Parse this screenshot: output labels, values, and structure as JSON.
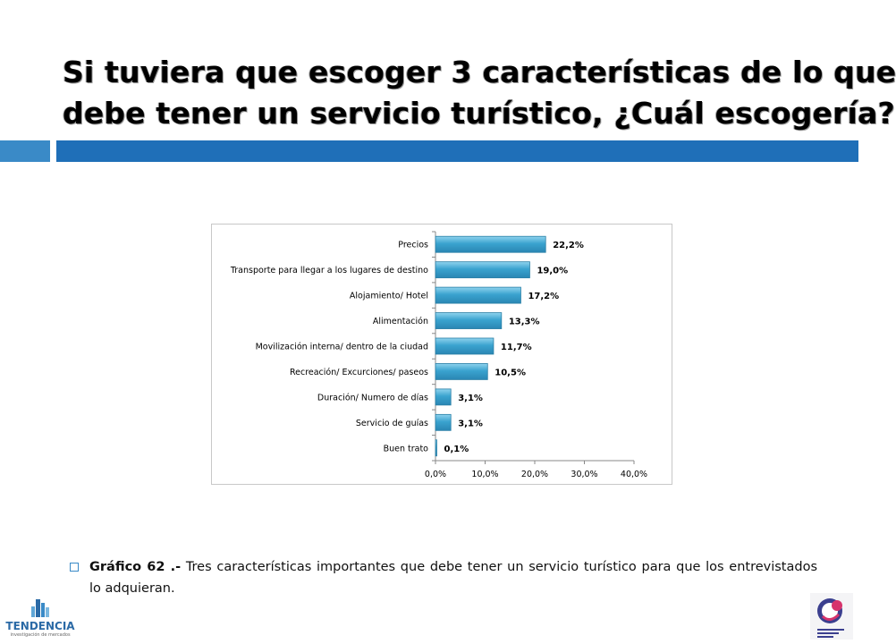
{
  "slide": {
    "title_line1": "Si tuviera que escoger 3 características de lo que",
    "title_line2": "debe tener un servicio turístico, ¿Cuál escogería?",
    "caption_bold": "Gráfico 62 .-",
    "caption_text": " Tres características importantes que debe tener un servicio turístico para que los entrevistados lo adquieran.",
    "logo_left_text": "TENDENCIA",
    "logo_left_sub": "investigación de mercados",
    "colors": {
      "band_light": "#3a8ac7",
      "band_dark": "#1f6fb8",
      "bar": "#3aa3cf",
      "bar_edge": "#2a7fa6"
    },
    "icons": [
      "bullet-square-icon",
      "tendencia-logo-icon",
      "quito-turismo-logo-icon"
    ]
  },
  "chart_data": {
    "type": "bar",
    "orientation": "horizontal",
    "categories": [
      "Precios",
      "Transporte para llegar a los lugares de destino",
      "Alojamiento/ Hotel",
      "Alimentación",
      "Movilización interna/ dentro de la ciudad",
      "Recreación/ Excurciones/ paseos",
      "Duración/ Numero de días",
      "Servicio de guías",
      "Buen trato"
    ],
    "values": [
      22.2,
      19.0,
      17.2,
      13.3,
      11.7,
      10.5,
      3.1,
      3.1,
      0.1
    ],
    "value_labels": [
      "22,2%",
      "19,0%",
      "17,2%",
      "13,3%",
      "11,7%",
      "10,5%",
      "3,1%",
      "3,1%",
      "0,1%"
    ],
    "xlim": [
      0,
      40
    ],
    "xticks": [
      "0,0%",
      "10,0%",
      "20,0%",
      "30,0%",
      "40,0%"
    ],
    "grid": false,
    "legend": "none",
    "title": "",
    "xlabel": "",
    "ylabel": ""
  }
}
